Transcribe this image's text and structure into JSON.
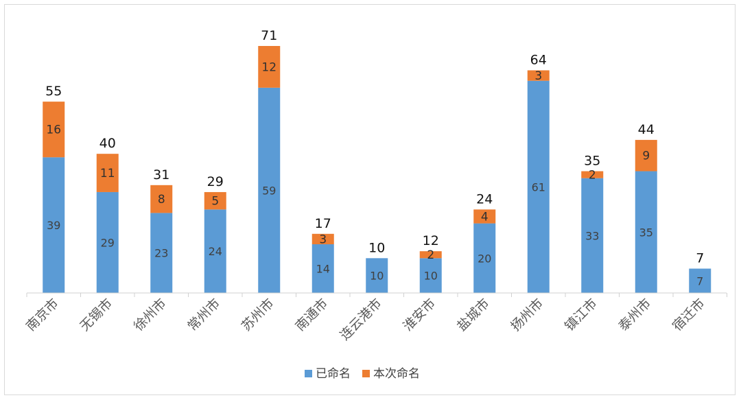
{
  "chart_data": {
    "type": "bar",
    "stacked": true,
    "categories": [
      "南京市",
      "无锡市",
      "徐州市",
      "常州市",
      "苏州市",
      "南通市",
      "连云港市",
      "淮安市",
      "盐城市",
      "扬州市",
      "镇江市",
      "泰州市",
      "宿迁市"
    ],
    "series": [
      {
        "name": "已命名",
        "color": "#5b9bd5",
        "values": [
          39,
          29,
          23,
          24,
          59,
          14,
          10,
          10,
          20,
          61,
          33,
          35,
          7
        ]
      },
      {
        "name": "本次命名",
        "color": "#ed7d31",
        "values": [
          16,
          11,
          8,
          5,
          12,
          3,
          0,
          2,
          4,
          3,
          2,
          9,
          0
        ]
      }
    ],
    "totals": [
      55,
      40,
      31,
      29,
      71,
      17,
      10,
      12,
      24,
      64,
      35,
      44,
      7
    ],
    "ylim": [
      0,
      71
    ],
    "grid": false,
    "legend_position": "bottom",
    "title": "",
    "xlabel": "",
    "ylabel": ""
  }
}
